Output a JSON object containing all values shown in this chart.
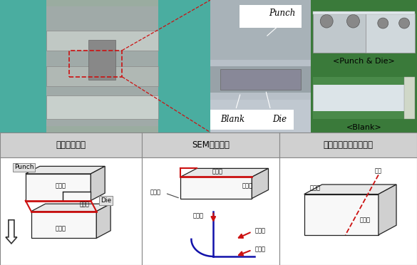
{
  "bg_color": "#f0f0f0",
  "top_bg": "#e8e8e8",
  "table_header_bg": "#d0d0d0",
  "table_body_bg": "#ffffff",
  "border_color": "#888888",
  "red_color": "#cc1111",
  "blue_color": "#1111aa",
  "dark_color": "#222222",
  "col1_header": "시편채취위치",
  "col2_header": "SEM관찰위치",
  "col3_header": "마이크로조직관찰위치",
  "punch_die_caption": "<Punch & Die>",
  "blank_caption": "<Blank>",
  "header_font_size": 8.5,
  "label_font_size": 7.0,
  "small_font_size": 6.0,
  "caption_font_size": 8.0
}
